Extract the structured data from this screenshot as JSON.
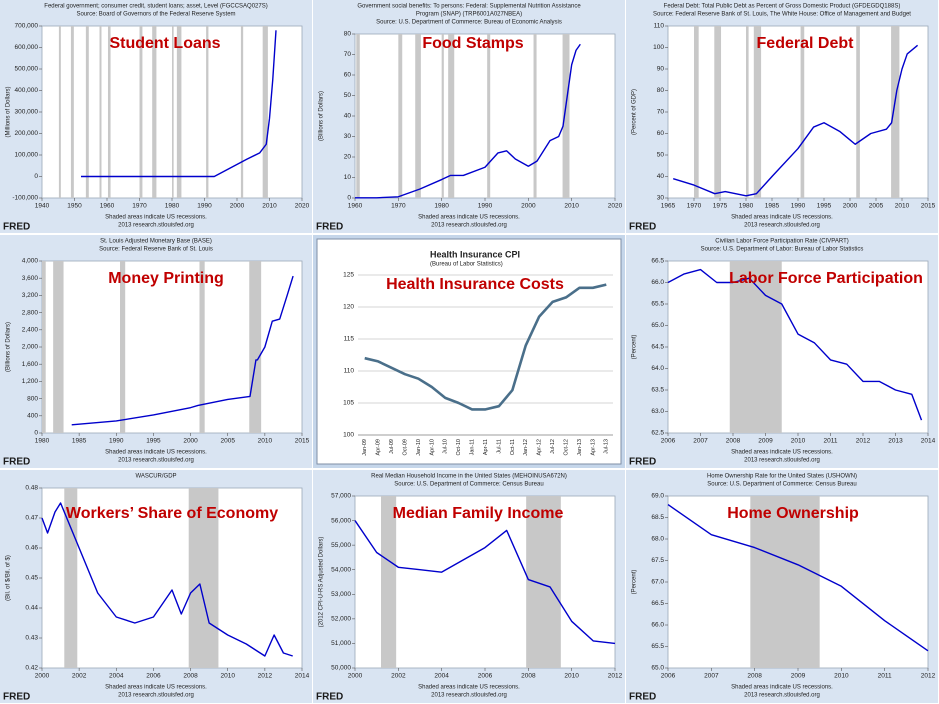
{
  "chart_data": [
    {
      "type": "line",
      "annotation": "Student Loans",
      "header": [
        "Federal government; consumer credit, student loans; asset, Level (FGCCSAQ027S)",
        "Source: Board of Governors of the Federal Reserve System"
      ],
      "ylabel": "(Millions of Dollars)",
      "note": "Shaded areas indicate US recessions.",
      "source_url": "2013 research.stlouisfed.org",
      "logo": "FRED",
      "color": "#0000cc",
      "x": [
        1952,
        1993,
        1998,
        2003,
        2007,
        2009,
        2010,
        2011,
        2012
      ],
      "values": [
        0,
        0,
        40000,
        80000,
        110000,
        150000,
        270000,
        450000,
        680000
      ],
      "recessions": [
        [
          1945.2,
          1945.8
        ],
        [
          1948.9,
          1949.8
        ],
        [
          1953.5,
          1954.4
        ],
        [
          1957.7,
          1958.3
        ],
        [
          1960.3,
          1961.1
        ],
        [
          1970,
          1970.9
        ],
        [
          1973.9,
          1975.2
        ],
        [
          1980,
          1980.5
        ],
        [
          1981.5,
          1982.9
        ],
        [
          1990.5,
          1991.2
        ],
        [
          2001.2,
          2001.9
        ],
        [
          2007.9,
          2009.5
        ]
      ],
      "xlim": [
        1940,
        2020
      ],
      "xticks": [
        1940,
        1950,
        1960,
        1970,
        1980,
        1990,
        2000,
        2010,
        2020
      ],
      "ylim": [
        -100000,
        700000
      ],
      "yticks": [
        {
          "value": -100000,
          "label": "-100,000"
        },
        0,
        {
          "value": 100000,
          "label": "100,000"
        },
        {
          "value": 200000,
          "label": "200,000"
        },
        {
          "value": 300000,
          "label": "300,000"
        },
        {
          "value": 400000,
          "label": "400,000"
        },
        {
          "value": 500000,
          "label": "500,000"
        },
        {
          "value": 600000,
          "label": "600,000"
        },
        {
          "value": 700000,
          "label": "700,000"
        }
      ],
      "grid": false
    },
    {
      "type": "line",
      "annotation": "Food Stamps",
      "header": [
        "Government social benefits: To persons: Federal: Supplemental Nutrition Assistance",
        "Program (SNAP) (TRP6001A027NBEA)",
        "Source: U.S. Department of Commerce: Bureau of Economic Analysis"
      ],
      "ylabel": "(Billions of Dollars)",
      "note": "Shaded areas indicate US recessions.",
      "source_url": "2013 research.stlouisfed.org",
      "logo": "FRED",
      "color": "#0000cc",
      "x": [
        1960,
        1965,
        1970,
        1975,
        1980,
        1982,
        1985,
        1990,
        1993,
        1995,
        1997,
        2000,
        2002,
        2005,
        2007,
        2008,
        2009,
        2010,
        2011,
        2012
      ],
      "values": [
        0.1,
        0.1,
        0.6,
        4.4,
        9,
        11,
        11,
        15,
        22,
        23,
        19,
        15.5,
        18,
        28,
        30,
        35,
        50,
        65,
        72,
        75
      ],
      "recessions": [
        [
          1960.3,
          1961.1
        ],
        [
          1970,
          1970.9
        ],
        [
          1973.9,
          1975.2
        ],
        [
          1980,
          1980.5
        ],
        [
          1981.5,
          1982.9
        ],
        [
          1990.5,
          1991.2
        ],
        [
          2001.2,
          2001.9
        ],
        [
          2007.9,
          2009.5
        ]
      ],
      "xlim": [
        1960,
        2020
      ],
      "xticks": [
        1960,
        1970,
        1980,
        1990,
        2000,
        2010,
        2020
      ],
      "ylim": [
        0,
        80
      ],
      "yticks": [
        0,
        10,
        20,
        30,
        40,
        50,
        60,
        70,
        80
      ],
      "grid": false
    },
    {
      "type": "line",
      "annotation": "Federal Debt",
      "header": [
        "Federal Debt: Total Public Debt as Percent of Gross Domestic Product (GFDEGDQ188S)",
        "Source: Federal Reserve Bank of St. Louis, The White House: Office of Management and Budget"
      ],
      "ylabel": "(Percent of GDP)",
      "note": "Shaded areas indicate US recessions.",
      "source_url": "2013 research.stlouisfed.org",
      "logo": "FRED",
      "color": "#0000cc",
      "x": [
        1966,
        1970,
        1974,
        1976,
        1980,
        1982,
        1985,
        1990,
        1993,
        1995,
        1998,
        2000,
        2001,
        2004,
        2007,
        2008,
        2009,
        2010,
        2011,
        2013
      ],
      "values": [
        39,
        36,
        32,
        33,
        31,
        32,
        40,
        53,
        63,
        65,
        61,
        57,
        55,
        60,
        62,
        65,
        80,
        90,
        97,
        101
      ],
      "recessions": [
        [
          1970,
          1970.9
        ],
        [
          1973.9,
          1975.2
        ],
        [
          1980,
          1980.5
        ],
        [
          1981.5,
          1982.9
        ],
        [
          1990.5,
          1991.2
        ],
        [
          2001.2,
          2001.9
        ],
        [
          2007.9,
          2009.5
        ]
      ],
      "xlim": [
        1965,
        2015
      ],
      "xticks": [
        1965,
        1970,
        1975,
        1980,
        1985,
        1990,
        1995,
        2000,
        2005,
        2010,
        2015
      ],
      "ylim": [
        30,
        110
      ],
      "yticks": [
        30,
        40,
        50,
        60,
        70,
        80,
        90,
        100,
        110
      ],
      "grid": false
    },
    {
      "type": "line",
      "annotation": "Money Printing",
      "header": [
        "St. Louis Adjusted Monetary Base (BASE)",
        "Source: Federal Reserve Bank of St. Louis"
      ],
      "ylabel": "(Billions of Dollars)",
      "note": "Shaded areas indicate US recessions.",
      "source_url": "2013 research.stlouisfed.org",
      "logo": "FRED",
      "color": "#0000cc",
      "x": [
        1984,
        1990,
        1995,
        2000,
        2001,
        2005,
        2008,
        2008.8,
        2009,
        2010,
        2011,
        2012,
        2013,
        2013.8
      ],
      "values": [
        190,
        280,
        420,
        590,
        640,
        780,
        850,
        1700,
        1700,
        2000,
        2600,
        2650,
        3200,
        3650
      ],
      "recessions": [
        [
          1980,
          1980.5
        ],
        [
          1981.5,
          1982.9
        ],
        [
          1990.5,
          1991.2
        ],
        [
          2001.2,
          2001.9
        ],
        [
          2007.9,
          2009.5
        ]
      ],
      "xlim": [
        1980,
        2015
      ],
      "xticks": [
        1980,
        1985,
        1990,
        1995,
        2000,
        2005,
        2010,
        2015
      ],
      "ylim": [
        0,
        4000
      ],
      "yticks": [
        0,
        400,
        800,
        {
          "value": 1200,
          "label": "1,200"
        },
        {
          "value": 1600,
          "label": "1,600"
        },
        {
          "value": 2000,
          "label": "2,000"
        },
        {
          "value": 2400,
          "label": "2,400"
        },
        {
          "value": 2800,
          "label": "2,800"
        },
        {
          "value": 3200,
          "label": "3,200"
        },
        {
          "value": 3600,
          "label": "3,600"
        },
        {
          "value": 4000,
          "label": "4,000"
        }
      ],
      "grid": false
    },
    {
      "type": "line",
      "annotation": "Health Insurance Costs",
      "title": "Health Insurance CPI",
      "subtitle": "(Bureau of Labor Statistics)",
      "color": "#4a6f8a",
      "categories": [
        "Jan-09",
        "Apr-09",
        "Jul-09",
        "Oct-09",
        "Jan-10",
        "Apr-10",
        "Jul-10",
        "Oct-10",
        "Jan-11",
        "Apr-11",
        "Jul-11",
        "Oct-11",
        "Jan-12",
        "Apr-12",
        "Jul-12",
        "Oct-12",
        "Jan-13",
        "Apr-13",
        "Jul-13"
      ],
      "values": [
        112,
        111.5,
        110.5,
        109.5,
        108.8,
        107.5,
        105.8,
        105,
        104,
        104,
        104.5,
        107,
        114,
        118.5,
        120.8,
        121.5,
        123,
        123,
        123.5
      ],
      "ylim": [
        100,
        125
      ],
      "yticks": [
        100,
        105,
        110,
        115,
        120,
        125
      ],
      "grid": true
    },
    {
      "type": "line",
      "annotation": "Labor Force Participation",
      "header": [
        "Civilian Labor Force Participation Rate (CIVPART)",
        "Source: U.S. Department of Labor: Bureau of Labor Statistics"
      ],
      "ylabel": "(Percent)",
      "note": "Shaded areas indicate US recessions.",
      "source_url": "2013 research.stlouisfed.org",
      "logo": "FRED",
      "color": "#0000cc",
      "x": [
        2006,
        2006.5,
        2007,
        2007.5,
        2008,
        2008.5,
        2009,
        2009.5,
        2010,
        2010.5,
        2011,
        2011.5,
        2012,
        2012.5,
        2013,
        2013.5,
        2013.8
      ],
      "values": [
        66.0,
        66.2,
        66.3,
        66.0,
        66.0,
        66.1,
        65.7,
        65.5,
        64.8,
        64.6,
        64.2,
        64.1,
        63.7,
        63.7,
        63.5,
        63.4,
        62.8
      ],
      "recessions": [
        [
          2007.9,
          2009.5
        ]
      ],
      "xlim": [
        2006,
        2014
      ],
      "xticks": [
        2006,
        2007,
        2008,
        2009,
        2010,
        2011,
        2012,
        2013,
        2014
      ],
      "ylim": [
        62.5,
        66.5
      ],
      "yticks": [
        62.5,
        {
          "value": 63,
          "label": "63.0"
        },
        63.5,
        {
          "value": 64,
          "label": "64.0"
        },
        64.5,
        {
          "value": 65,
          "label": "65.0"
        },
        65.5,
        {
          "value": 66,
          "label": "66.0"
        },
        66.5
      ],
      "grid": false
    },
    {
      "type": "line",
      "annotation": "Workers’ Share of Economy",
      "header": [
        "WASCUR/GDP"
      ],
      "ylabel": "(Bil. of $/Bil. of $)",
      "note": "Shaded areas indicate US recessions.",
      "source_url": "2013 research.stlouisfed.org",
      "logo": "FRED",
      "color": "#0000cc",
      "x": [
        2000,
        2000.3,
        2000.7,
        2001,
        2002,
        2003,
        2004,
        2005,
        2006,
        2007,
        2007.5,
        2008,
        2008.5,
        2009,
        2010,
        2011,
        2012,
        2012.5,
        2013,
        2013.5
      ],
      "values": [
        0.47,
        0.465,
        0.472,
        0.475,
        0.46,
        0.445,
        0.437,
        0.435,
        0.437,
        0.446,
        0.438,
        0.445,
        0.448,
        0.435,
        0.431,
        0.428,
        0.424,
        0.431,
        0.425,
        0.424
      ],
      "recessions": [
        [
          2001.2,
          2001.9
        ],
        [
          2007.9,
          2009.5
        ]
      ],
      "xlim": [
        2000,
        2014
      ],
      "xticks": [
        2000,
        2002,
        2004,
        2006,
        2008,
        2010,
        2012,
        2014
      ],
      "ylim": [
        0.42,
        0.48
      ],
      "yticks": [
        0.42,
        0.43,
        0.44,
        0.45,
        0.46,
        0.47,
        0.48
      ],
      "grid": false
    },
    {
      "type": "line",
      "annotation": "Median Family Income",
      "header": [
        "Real Median Household Income in the United States (MEHOINUSA672N)",
        "Source: U.S. Department of Commerce: Census Bureau"
      ],
      "ylabel": "(2012 CPI-U-RS Adjusted Dollars)",
      "note": "Shaded areas indicate US recessions.",
      "source_url": "2013 research.stlouisfed.org",
      "logo": "FRED",
      "color": "#0000cc",
      "x": [
        2000,
        2001,
        2002,
        2003,
        2004,
        2005,
        2006,
        2007,
        2008,
        2009,
        2010,
        2011,
        2012
      ],
      "values": [
        56000,
        54700,
        54100,
        54000,
        53900,
        54400,
        54900,
        55600,
        53600,
        53300,
        51900,
        51100,
        51000
      ],
      "recessions": [
        [
          2001.2,
          2001.9
        ],
        [
          2007.9,
          2009.5
        ]
      ],
      "xlim": [
        2000,
        2012
      ],
      "xticks": [
        2000,
        2002,
        2004,
        2006,
        2008,
        2010,
        2012
      ],
      "ylim": [
        50000,
        57000
      ],
      "yticks": [
        {
          "value": 50000,
          "label": "50,000"
        },
        {
          "value": 51000,
          "label": "51,000"
        },
        {
          "value": 52000,
          "label": "52,000"
        },
        {
          "value": 53000,
          "label": "53,000"
        },
        {
          "value": 54000,
          "label": "54,000"
        },
        {
          "value": 55000,
          "label": "55,000"
        },
        {
          "value": 56000,
          "label": "56,000"
        },
        {
          "value": 57000,
          "label": "57,000"
        }
      ],
      "grid": false
    },
    {
      "type": "line",
      "annotation": "Home Ownership",
      "header": [
        "Home Ownership Rate for the United States (USHOWN)",
        "Source: U.S. Department of Commerce: Census Bureau"
      ],
      "ylabel": "(Percent)",
      "note": "Shaded areas indicate US recessions.",
      "source_url": "2013 research.stlouisfed.org",
      "logo": "FRED",
      "color": "#0000cc",
      "x": [
        2006,
        2007,
        2008,
        2009,
        2010,
        2011,
        2012
      ],
      "values": [
        68.8,
        68.1,
        67.8,
        67.4,
        66.9,
        66.1,
        65.4
      ],
      "recessions": [
        [
          2007.9,
          2009.5
        ]
      ],
      "xlim": [
        2006,
        2012
      ],
      "xticks": [
        2006,
        2007,
        2008,
        2009,
        2010,
        2011,
        2012
      ],
      "ylim": [
        65,
        69
      ],
      "yticks": [
        {
          "value": 65,
          "label": "65.0"
        },
        65.5,
        {
          "value": 66,
          "label": "66.0"
        },
        66.5,
        {
          "value": 67,
          "label": "67.0"
        },
        67.5,
        {
          "value": 68,
          "label": "68.0"
        },
        68.5,
        {
          "value": 69,
          "label": "69.0"
        }
      ],
      "grid": false
    }
  ]
}
